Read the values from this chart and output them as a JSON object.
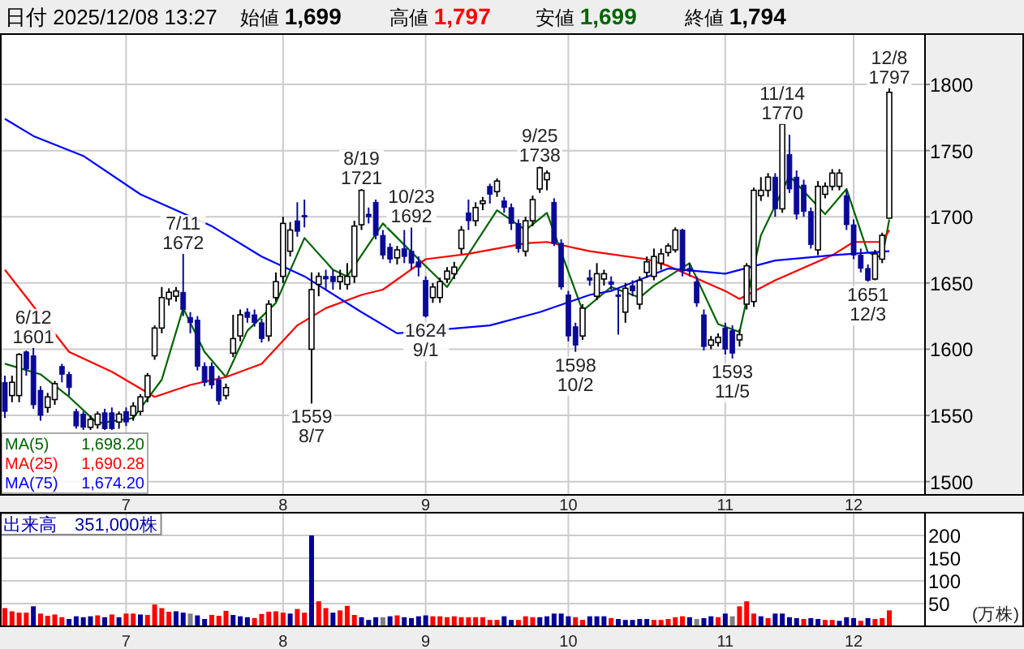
{
  "chart_data": [
    {
      "type": "candlestick",
      "title": "日付 2025/12/08 13:27",
      "annotations": [
        "始値 1,699",
        "高値 1,797",
        "安値 1,699",
        "終値 1,794",
        {
          "text": "6/12\n1601",
          "y": 1601
        },
        {
          "text": "7/11\n1672",
          "y": 1672
        },
        {
          "text": "1559\n8/7",
          "y": 1559
        },
        {
          "text": "8/19\n1721",
          "y": 1721
        },
        {
          "text": "1624\n9/1",
          "y": 1624
        },
        {
          "text": "9/25\n1738",
          "y": 1738
        },
        {
          "text": "1598\n10/2",
          "y": 1598
        },
        {
          "text": "10/23\n1692",
          "y": 1692
        },
        {
          "text": "1593\n11/5",
          "y": 1593
        },
        {
          "text": "11/14\n1770",
          "y": 1770
        },
        {
          "text": "1651\n12/3",
          "y": 1651
        },
        {
          "text": "12/8\n1797",
          "y": 1797
        }
      ],
      "categories": [
        null,
        null,
        null,
        null,
        null,
        null,
        null,
        null,
        null,
        null,
        null,
        null,
        null,
        null,
        null,
        null,
        null,
        "7",
        null,
        null,
        null,
        null,
        null,
        null,
        null,
        null,
        null,
        null,
        null,
        null,
        null,
        null,
        null,
        null,
        null,
        null,
        null,
        null,
        null,
        "8",
        null,
        null,
        null,
        null,
        null,
        null,
        null,
        null,
        null,
        null,
        null,
        null,
        null,
        null,
        null,
        null,
        null,
        null,
        null,
        "9",
        null,
        null,
        null,
        null,
        null,
        null,
        null,
        null,
        null,
        null,
        null,
        null,
        null,
        null,
        null,
        null,
        null,
        null,
        null,
        "10",
        null,
        null,
        null,
        null,
        null,
        null,
        null,
        null,
        null,
        null,
        null,
        null,
        null,
        null,
        null,
        null,
        null,
        null,
        null,
        null,
        null,
        "11",
        null,
        null,
        null,
        null,
        null,
        null,
        null,
        null,
        null,
        null,
        null,
        null,
        null,
        null,
        null,
        null,
        null,
        "12",
        null,
        null,
        null,
        null,
        null
      ],
      "ohlc": [
        [
          1575,
          1580,
          1548,
          1553
        ],
        [
          1565,
          1580,
          1560,
          1575
        ],
        [
          1565,
          1597,
          1560,
          1596
        ],
        [
          1598,
          1599,
          1580,
          1585
        ],
        [
          1595,
          1601,
          1555,
          1558
        ],
        [
          1569,
          1572,
          1546,
          1550
        ],
        [
          1556,
          1567,
          1552,
          1564
        ],
        [
          1562,
          1576,
          1558,
          1574
        ],
        [
          1587,
          1589,
          1575,
          1581
        ],
        [
          1581,
          1583,
          1565,
          1571
        ],
        [
          1553,
          1555,
          1540,
          1542
        ],
        [
          1551,
          1553,
          1539,
          1541
        ],
        [
          1541,
          1550,
          1539,
          1547
        ],
        [
          1543,
          1553,
          1540,
          1551
        ],
        [
          1552,
          1555,
          1539,
          1540
        ],
        [
          1552,
          1556,
          1539,
          1540
        ],
        [
          1545,
          1553,
          1540,
          1551
        ],
        [
          1553,
          1556,
          1542,
          1545
        ],
        [
          1550,
          1560,
          1546,
          1557
        ],
        [
          1553,
          1566,
          1550,
          1564
        ],
        [
          1564,
          1582,
          1560,
          1580
        ],
        [
          1595,
          1618,
          1592,
          1616
        ],
        [
          1616,
          1647,
          1612,
          1639
        ],
        [
          1638,
          1646,
          1633,
          1643
        ],
        [
          1640,
          1647,
          1636,
          1644
        ],
        [
          1643,
          1672,
          1625,
          1630
        ],
        [
          1624,
          1628,
          1612,
          1620
        ],
        [
          1622,
          1625,
          1584,
          1587
        ],
        [
          1587,
          1590,
          1572,
          1575
        ],
        [
          1587,
          1590,
          1570,
          1573
        ],
        [
          1577,
          1580,
          1558,
          1561
        ],
        [
          1565,
          1574,
          1562,
          1571
        ],
        [
          1597,
          1626,
          1594,
          1608
        ],
        [
          1610,
          1630,
          1606,
          1626
        ],
        [
          1628,
          1631,
          1620,
          1624
        ],
        [
          1626,
          1630,
          1617,
          1620
        ],
        [
          1620,
          1623,
          1605,
          1608
        ],
        [
          1610,
          1637,
          1606,
          1634
        ],
        [
          1639,
          1658,
          1636,
          1651
        ],
        [
          1655,
          1700,
          1650,
          1695
        ],
        [
          1674,
          1696,
          1670,
          1690
        ],
        [
          1697,
          1711,
          1685,
          1689
        ],
        [
          1701,
          1713,
          1692,
          1700
        ],
        [
          1600,
          1658,
          1559,
          1645
        ],
        [
          1649,
          1658,
          1640,
          1655
        ],
        [
          1655,
          1660,
          1645,
          1653
        ],
        [
          1655,
          1660,
          1645,
          1651
        ],
        [
          1651,
          1660,
          1645,
          1655
        ],
        [
          1649,
          1665,
          1645,
          1655
        ],
        [
          1655,
          1697,
          1650,
          1693
        ],
        [
          1694,
          1721,
          1690,
          1720
        ],
        [
          1702,
          1707,
          1695,
          1700
        ],
        [
          1711,
          1713,
          1683,
          1686
        ],
        [
          1686,
          1690,
          1668,
          1671
        ],
        [
          1677,
          1680,
          1665,
          1668
        ],
        [
          1669,
          1678,
          1664,
          1675
        ],
        [
          1676,
          1690,
          1665,
          1670
        ],
        [
          1674,
          1692,
          1660,
          1665
        ],
        [
          1666,
          1670,
          1655,
          1662
        ],
        [
          1652,
          1655,
          1624,
          1625
        ],
        [
          1639,
          1650,
          1635,
          1647
        ],
        [
          1639,
          1654,
          1635,
          1651
        ],
        [
          1653,
          1662,
          1650,
          1659
        ],
        [
          1657,
          1666,
          1653,
          1662
        ],
        [
          1676,
          1693,
          1672,
          1690
        ],
        [
          1703,
          1713,
          1690,
          1697
        ],
        [
          1697,
          1711,
          1693,
          1707
        ],
        [
          1710,
          1715,
          1705,
          1712
        ],
        [
          1723,
          1725,
          1710,
          1717
        ],
        [
          1719,
          1729,
          1715,
          1727
        ],
        [
          1712,
          1715,
          1703,
          1707
        ],
        [
          1707,
          1710,
          1690,
          1695
        ],
        [
          1695,
          1698,
          1673,
          1676
        ],
        [
          1674,
          1700,
          1670,
          1697
        ],
        [
          1697,
          1716,
          1693,
          1713
        ],
        [
          1721,
          1738,
          1718,
          1737
        ],
        [
          1728,
          1735,
          1720,
          1733
        ],
        [
          1711,
          1714,
          1678,
          1680
        ],
        [
          1680,
          1683,
          1645,
          1647
        ],
        [
          1641,
          1644,
          1606,
          1610
        ],
        [
          1617,
          1620,
          1598,
          1603
        ],
        [
          1610,
          1634,
          1607,
          1631
        ],
        [
          1654,
          1660,
          1648,
          1652
        ],
        [
          1640,
          1665,
          1637,
          1657
        ],
        [
          1653,
          1660,
          1648,
          1657
        ],
        [
          1651,
          1655,
          1645,
          1649
        ],
        [
          1641,
          1645,
          1611,
          1640
        ],
        [
          1628,
          1650,
          1620,
          1646
        ],
        [
          1648,
          1652,
          1640,
          1644
        ],
        [
          1634,
          1655,
          1630,
          1652
        ],
        [
          1658,
          1670,
          1654,
          1666
        ],
        [
          1655,
          1676,
          1652,
          1670
        ],
        [
          1665,
          1676,
          1660,
          1672
        ],
        [
          1673,
          1680,
          1670,
          1678
        ],
        [
          1675,
          1692,
          1673,
          1690
        ],
        [
          1690,
          1691,
          1655,
          1659
        ],
        [
          1661,
          1665,
          1655,
          1659
        ],
        [
          1651,
          1655,
          1632,
          1635
        ],
        [
          1626,
          1630,
          1599,
          1602
        ],
        [
          1603,
          1610,
          1600,
          1607
        ],
        [
          1605,
          1612,
          1602,
          1609
        ],
        [
          1616,
          1620,
          1596,
          1600
        ],
        [
          1614,
          1618,
          1593,
          1597
        ],
        [
          1607,
          1615,
          1602,
          1611
        ],
        [
          1634,
          1665,
          1630,
          1663
        ],
        [
          1636,
          1722,
          1632,
          1720
        ],
        [
          1716,
          1730,
          1712,
          1720
        ],
        [
          1720,
          1733,
          1715,
          1730
        ],
        [
          1730,
          1733,
          1700,
          1706
        ],
        [
          1706,
          1770,
          1703,
          1770
        ],
        [
          1747,
          1762,
          1718,
          1721
        ],
        [
          1730,
          1735,
          1698,
          1702
        ],
        [
          1724,
          1728,
          1700,
          1704
        ],
        [
          1704,
          1707,
          1676,
          1679
        ],
        [
          1675,
          1727,
          1671,
          1723
        ],
        [
          1717,
          1726,
          1714,
          1723
        ],
        [
          1723,
          1736,
          1720,
          1733
        ],
        [
          1723,
          1736,
          1720,
          1733
        ],
        [
          1716,
          1720,
          1690,
          1694
        ],
        [
          1694,
          1698,
          1668,
          1671
        ],
        [
          1671,
          1676,
          1658,
          1661
        ],
        [
          1661,
          1664,
          1651,
          1652
        ],
        [
          1653,
          1675,
          1652,
          1672
        ],
        [
          1668,
          1688,
          1665,
          1686
        ],
        [
          1699,
          1797,
          1699,
          1794
        ]
      ],
      "series": [
        {
          "name": "MA(5) 1,698.20",
          "type": "line",
          "color": "#006400",
          "values": [
            1589,
            null,
            null,
            null,
            null,
            1581,
            null,
            null,
            null,
            1564,
            null,
            null,
            null,
            1544,
            null,
            null,
            null,
            null,
            1548,
            null,
            null,
            null,
            1577,
            null,
            null,
            1631,
            null,
            null,
            1598,
            null,
            null,
            1579,
            null,
            null,
            1614,
            null,
            null,
            null,
            1635,
            null,
            null,
            null,
            1684,
            null,
            null,
            null,
            1660,
            null,
            1655,
            null,
            null,
            null,
            null,
            1695,
            null,
            null,
            null,
            null,
            1668,
            null,
            null,
            null,
            1647,
            null,
            null,
            null,
            null,
            null,
            null,
            1705,
            null,
            null,
            null,
            1690,
            null,
            null,
            1703,
            null,
            null,
            null,
            null,
            1629,
            null,
            null,
            null,
            1647,
            null,
            null,
            null,
            1639,
            null,
            1648,
            null,
            null,
            null,
            null,
            1665,
            null,
            null,
            null,
            1619,
            null,
            null,
            1613,
            null,
            null,
            1686,
            null,
            null,
            null,
            1731,
            null,
            null,
            null,
            null,
            1702,
            null,
            null,
            1721,
            null,
            null,
            1673,
            null,
            1669,
            1698
          ]
        },
        {
          "name": "MA(25) 1,690.28",
          "type": "line",
          "color": "#ff0000",
          "values": [
            1660,
            null,
            null,
            null,
            null,
            null,
            null,
            null,
            null,
            1598,
            null,
            null,
            null,
            null,
            null,
            1583,
            null,
            null,
            null,
            null,
            null,
            1564,
            null,
            null,
            null,
            null,
            1573,
            null,
            null,
            null,
            null,
            1579,
            null,
            null,
            null,
            null,
            1589,
            null,
            null,
            null,
            null,
            1618,
            null,
            null,
            null,
            1631,
            null,
            null,
            null,
            null,
            1641,
            null,
            null,
            1645,
            null,
            null,
            null,
            null,
            null,
            1668,
            null,
            null,
            null,
            null,
            null,
            1672,
            null,
            null,
            null,
            null,
            null,
            null,
            null,
            1680,
            null,
            null,
            1681,
            null,
            null,
            null,
            null,
            null,
            1674,
            null,
            null,
            null,
            null,
            null,
            null,
            null,
            1668,
            null,
            null,
            1663,
            null,
            null,
            null,
            null,
            null,
            null,
            null,
            1644,
            null,
            1638,
            null,
            null,
            null,
            null,
            1652,
            null,
            null,
            null,
            null,
            null,
            null,
            null,
            1671,
            null,
            null,
            1681,
            null,
            null,
            null,
            1681,
            1690
          ]
        },
        {
          "name": "MA(75) 1,674.20",
          "type": "line",
          "color": "#0000ff",
          "values": [
            1774,
            null,
            null,
            null,
            1761,
            null,
            null,
            null,
            null,
            null,
            null,
            1746,
            null,
            null,
            null,
            null,
            null,
            null,
            null,
            1717,
            null,
            null,
            null,
            null,
            null,
            null,
            null,
            null,
            null,
            1693,
            null,
            null,
            null,
            null,
            null,
            null,
            1670,
            null,
            null,
            null,
            null,
            null,
            1655,
            null,
            null,
            null,
            null,
            null,
            null,
            null,
            1628,
            null,
            null,
            null,
            null,
            1612,
            null,
            null,
            null,
            null,
            null,
            null,
            null,
            null,
            null,
            null,
            null,
            null,
            1618,
            null,
            null,
            null,
            null,
            null,
            null,
            1628,
            null,
            null,
            null,
            null,
            null,
            null,
            1641,
            null,
            null,
            1644,
            null,
            null,
            null,
            null,
            null,
            null,
            null,
            1661,
            null,
            null,
            null,
            null,
            null,
            null,
            null,
            1657,
            null,
            null,
            null,
            null,
            null,
            null,
            1667,
            null,
            null,
            null,
            null,
            null,
            null,
            null,
            1671,
            null,
            null,
            null,
            null,
            null,
            null,
            null,
            1674
          ]
        }
      ],
      "ylim": [
        1490,
        1838
      ],
      "yticks": [
        1500,
        1550,
        1600,
        1650,
        1700,
        1750,
        1800
      ],
      "grid": true
    },
    {
      "type": "bar",
      "title": "出来高 351,000株",
      "ylabel": "(万株)",
      "categories": [
        null,
        null,
        null,
        null,
        null,
        null,
        null,
        null,
        null,
        null,
        null,
        null,
        null,
        null,
        null,
        null,
        null,
        "7",
        null,
        null,
        null,
        null,
        null,
        null,
        null,
        null,
        null,
        null,
        null,
        null,
        null,
        null,
        null,
        null,
        null,
        null,
        null,
        null,
        null,
        "8",
        null,
        null,
        null,
        null,
        null,
        null,
        null,
        null,
        null,
        null,
        null,
        null,
        null,
        null,
        null,
        null,
        null,
        null,
        null,
        "9",
        null,
        null,
        null,
        null,
        null,
        null,
        null,
        null,
        null,
        null,
        null,
        null,
        null,
        null,
        null,
        null,
        null,
        null,
        null,
        "10",
        null,
        null,
        null,
        null,
        null,
        null,
        null,
        null,
        null,
        null,
        null,
        null,
        null,
        null,
        null,
        null,
        null,
        null,
        null,
        null,
        null,
        "11",
        null,
        null,
        null,
        null,
        null,
        null,
        null,
        null,
        null,
        null,
        null,
        null,
        null,
        null,
        null,
        null,
        null,
        "12",
        null,
        null,
        null,
        null,
        null
      ],
      "values": [
        40,
        33,
        30,
        30,
        44,
        28,
        23,
        26,
        20,
        16,
        22,
        20,
        22,
        24,
        20,
        26,
        20,
        28,
        28,
        26,
        25,
        48,
        40,
        32,
        33,
        30,
        28,
        24,
        16,
        25,
        23,
        34,
        25,
        22,
        20,
        18,
        27,
        32,
        33,
        30,
        28,
        38,
        30,
        200,
        55,
        40,
        30,
        35,
        45,
        25,
        20,
        14,
        20,
        20,
        22,
        24,
        20,
        18,
        22,
        24,
        22,
        22,
        20,
        22,
        20,
        20,
        20,
        20,
        14,
        14,
        22,
        14,
        14,
        22,
        20,
        20,
        22,
        28,
        28,
        22,
        20,
        14,
        22,
        22,
        22,
        18,
        16,
        14,
        14,
        16,
        16,
        14,
        14,
        16,
        20,
        22,
        20,
        16,
        18,
        22,
        20,
        28,
        22,
        44,
        55,
        28,
        22,
        18,
        28,
        28,
        20,
        18,
        16,
        18,
        16,
        14,
        14,
        12,
        20,
        18,
        12,
        18,
        16,
        18,
        35
      ],
      "colors": [
        "#ff0000",
        "#ff0000",
        "#ff0000",
        "#ff0000",
        "#000099",
        "#ff0000",
        "#ff0000",
        "#ff0000",
        "#ff0000",
        "#000099",
        "#000099",
        "#000099",
        "#000099",
        "#ff0000",
        "#000099",
        "#ff0000",
        "#000099",
        "#ff0000",
        "#ff0000",
        "#000099",
        "#ff0000",
        "#ff0000",
        "#ff0000",
        "#ff0000",
        "#000099",
        "#000099",
        "#808080",
        "#000099",
        "#000099",
        "#ff0000",
        "#ff0000",
        "#ff0000",
        "#000099",
        "#000099",
        "#000099",
        "#ff0000",
        "#ff0000",
        "#ff0000",
        "#ff0000",
        "#ff0000",
        "#000099",
        "#ff0000",
        "#ff0000",
        "#000099",
        "#ff0000",
        "#ff0000",
        "#000099",
        "#ff0000",
        "#ff0000",
        "#ff0000",
        "#000099",
        "#000099",
        "#000099",
        "#808080",
        "#000099",
        "#ff0000",
        "#000099",
        "#000099",
        "#000099",
        "#000099",
        "#ff0000",
        "#ff0000",
        "#ff0000",
        "#ff0000",
        "#ff0000",
        "#ff0000",
        "#ff0000",
        "#ff0000",
        "#ff0000",
        "#ff0000",
        "#000099",
        "#000099",
        "#ff0000",
        "#ff0000",
        "#ff0000",
        "#000099",
        "#000099",
        "#000099",
        "#000099",
        "#000099",
        "#ff0000",
        "#ff0000",
        "#000099",
        "#000099",
        "#000099",
        "#ff0000",
        "#000099",
        "#000099",
        "#000099",
        "#000099",
        "#000099",
        "#ff0000",
        "#ff0000",
        "#ff0000",
        "#ff0000",
        "#ff0000",
        "#000099",
        "#808080",
        "#000099",
        "#000099",
        "#ff0000",
        "#000099",
        "#808080",
        "#ff0000",
        "#ff0000",
        "#ff0000",
        "#000099",
        "#ff0000",
        "#000099",
        "#000099",
        "#000099",
        "#000099",
        "#ff0000",
        "#000099",
        "#000099",
        "#ff0000",
        "#ff0000",
        "#000099",
        "#000099",
        "#000099",
        "#ff0000",
        "#000099",
        "#ff0000",
        "#ff0000",
        "#ff0000"
      ],
      "ylim": [
        0,
        250
      ],
      "yticks": [
        50,
        100,
        150,
        200
      ],
      "grid": true
    }
  ]
}
